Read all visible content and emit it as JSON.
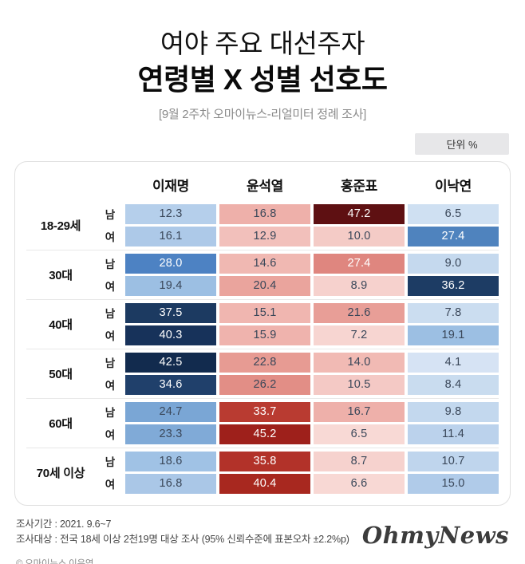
{
  "header": {
    "title_line1": "여야 주요 대선주자",
    "title_line2": "연령별 X 성별 선호도",
    "subtitle": "[9월 2주차 오마이뉴스-리얼미터 정례 조사]",
    "unit_label": "단위 %"
  },
  "table": {
    "text_dark": "#3a4759",
    "candidates": [
      "이재명",
      "윤석열",
      "홍준표",
      "이낙연"
    ],
    "groups": [
      {
        "age": "18-29세",
        "rows": [
          {
            "gender": "남",
            "cells": [
              {
                "v": "12.3",
                "bg": "#b5cfeb",
                "fg": "dark"
              },
              {
                "v": "16.8",
                "bg": "#eeb0aa",
                "fg": "dark"
              },
              {
                "v": "47.2",
                "bg": "#5e1012",
                "fg": "white"
              },
              {
                "v": "6.5",
                "bg": "#cfe0f2",
                "fg": "dark"
              }
            ]
          },
          {
            "gender": "여",
            "cells": [
              {
                "v": "16.1",
                "bg": "#adc9e8",
                "fg": "dark"
              },
              {
                "v": "12.9",
                "bg": "#f2c0bb",
                "fg": "dark"
              },
              {
                "v": "10.0",
                "bg": "#f4cbc6",
                "fg": "dark"
              },
              {
                "v": "27.4",
                "bg": "#4f83be",
                "fg": "white"
              }
            ]
          }
        ]
      },
      {
        "age": "30대",
        "rows": [
          {
            "gender": "남",
            "cells": [
              {
                "v": "28.0",
                "bg": "#4d82c3",
                "fg": "white"
              },
              {
                "v": "14.6",
                "bg": "#f0b8b2",
                "fg": "dark"
              },
              {
                "v": "27.4",
                "bg": "#df867f",
                "fg": "white"
              },
              {
                "v": "9.0",
                "bg": "#c5d9ee",
                "fg": "dark"
              }
            ]
          },
          {
            "gender": "여",
            "cells": [
              {
                "v": "19.4",
                "bg": "#9cbfe3",
                "fg": "dark"
              },
              {
                "v": "20.4",
                "bg": "#eaa49d",
                "fg": "dark"
              },
              {
                "v": "8.9",
                "bg": "#f6d1cd",
                "fg": "dark"
              },
              {
                "v": "36.2",
                "bg": "#1d3c64",
                "fg": "white"
              }
            ]
          }
        ]
      },
      {
        "age": "40대",
        "rows": [
          {
            "gender": "남",
            "cells": [
              {
                "v": "37.5",
                "bg": "#1c3a61",
                "fg": "white"
              },
              {
                "v": "15.1",
                "bg": "#f0b6b0",
                "fg": "dark"
              },
              {
                "v": "21.6",
                "bg": "#e89e97",
                "fg": "dark"
              },
              {
                "v": "7.8",
                "bg": "#cbddf0",
                "fg": "dark"
              }
            ]
          },
          {
            "gender": "여",
            "cells": [
              {
                "v": "40.3",
                "bg": "#17325a",
                "fg": "white"
              },
              {
                "v": "15.9",
                "bg": "#efb3ad",
                "fg": "dark"
              },
              {
                "v": "7.2",
                "bg": "#f7d5d1",
                "fg": "dark"
              },
              {
                "v": "19.1",
                "bg": "#9cbfe3",
                "fg": "dark"
              }
            ]
          }
        ]
      },
      {
        "age": "50대",
        "rows": [
          {
            "gender": "남",
            "cells": [
              {
                "v": "42.5",
                "bg": "#122b4e",
                "fg": "white"
              },
              {
                "v": "22.8",
                "bg": "#e79b93",
                "fg": "dark"
              },
              {
                "v": "14.0",
                "bg": "#f1bab4",
                "fg": "dark"
              },
              {
                "v": "4.1",
                "bg": "#d6e3f4",
                "fg": "dark"
              }
            ]
          },
          {
            "gender": "여",
            "cells": [
              {
                "v": "34.6",
                "bg": "#20406b",
                "fg": "white"
              },
              {
                "v": "26.2",
                "bg": "#e28e86",
                "fg": "dark"
              },
              {
                "v": "10.5",
                "bg": "#f4c9c5",
                "fg": "dark"
              },
              {
                "v": "8.4",
                "bg": "#c9dcef",
                "fg": "dark"
              }
            ]
          }
        ]
      },
      {
        "age": "60대",
        "rows": [
          {
            "gender": "남",
            "cells": [
              {
                "v": "24.7",
                "bg": "#7aa6d5",
                "fg": "dark"
              },
              {
                "v": "33.7",
                "bg": "#b93b31",
                "fg": "white"
              },
              {
                "v": "16.7",
                "bg": "#eeb0aa",
                "fg": "dark"
              },
              {
                "v": "9.8",
                "bg": "#c3d8ee",
                "fg": "dark"
              }
            ]
          },
          {
            "gender": "여",
            "cells": [
              {
                "v": "23.3",
                "bg": "#80aad7",
                "fg": "dark"
              },
              {
                "v": "45.2",
                "bg": "#9e201b",
                "fg": "white"
              },
              {
                "v": "6.5",
                "bg": "#f8d9d5",
                "fg": "dark"
              },
              {
                "v": "11.4",
                "bg": "#bbd2ec",
                "fg": "dark"
              }
            ]
          }
        ]
      },
      {
        "age": "70세 이상",
        "rows": [
          {
            "gender": "남",
            "cells": [
              {
                "v": "18.6",
                "bg": "#a0c2e5",
                "fg": "dark"
              },
              {
                "v": "35.8",
                "bg": "#b23229",
                "fg": "white"
              },
              {
                "v": "8.7",
                "bg": "#f6d2ce",
                "fg": "dark"
              },
              {
                "v": "10.7",
                "bg": "#bfd5ed",
                "fg": "dark"
              }
            ]
          },
          {
            "gender": "여",
            "cells": [
              {
                "v": "16.8",
                "bg": "#aac7e7",
                "fg": "dark"
              },
              {
                "v": "40.4",
                "bg": "#a8281f",
                "fg": "white"
              },
              {
                "v": "6.6",
                "bg": "#f8d8d4",
                "fg": "dark"
              },
              {
                "v": "15.0",
                "bg": "#b0cbe9",
                "fg": "dark"
              }
            ]
          }
        ]
      }
    ]
  },
  "footer": {
    "period": "조사기간 : 2021. 9.6~7",
    "sample": "조사대상 : 전국 18세 이상 2천19명 대상 조사 (95% 신뢰수준에 표본오차 ±2.2%p)",
    "copyright": "© 오마이뉴스 이은영",
    "logo": "OhmyNews"
  },
  "chart_data": {
    "type": "heatmap",
    "title": "여야 주요 대선주자 연령별 X 성별 선호도",
    "subtitle": "[9월 2주차 오마이뉴스-리얼미터 정례 조사]",
    "unit": "%",
    "columns": [
      "이재명",
      "윤석열",
      "홍준표",
      "이낙연"
    ],
    "rows": [
      {
        "age": "18-29세",
        "gender": "남",
        "values": [
          12.3,
          16.8,
          47.2,
          6.5
        ]
      },
      {
        "age": "18-29세",
        "gender": "여",
        "values": [
          16.1,
          12.9,
          10.0,
          27.4
        ]
      },
      {
        "age": "30대",
        "gender": "남",
        "values": [
          28.0,
          14.6,
          27.4,
          9.0
        ]
      },
      {
        "age": "30대",
        "gender": "여",
        "values": [
          19.4,
          20.4,
          8.9,
          36.2
        ]
      },
      {
        "age": "40대",
        "gender": "남",
        "values": [
          37.5,
          15.1,
          21.6,
          7.8
        ]
      },
      {
        "age": "40대",
        "gender": "여",
        "values": [
          40.3,
          15.9,
          7.2,
          19.1
        ]
      },
      {
        "age": "50대",
        "gender": "남",
        "values": [
          42.5,
          22.8,
          14.0,
          4.1
        ]
      },
      {
        "age": "50대",
        "gender": "여",
        "values": [
          34.6,
          26.2,
          10.5,
          8.4
        ]
      },
      {
        "age": "60대",
        "gender": "남",
        "values": [
          24.7,
          33.7,
          16.7,
          9.8
        ]
      },
      {
        "age": "60대",
        "gender": "여",
        "values": [
          23.3,
          45.2,
          6.5,
          11.4
        ]
      },
      {
        "age": "70세 이상",
        "gender": "남",
        "values": [
          18.6,
          35.8,
          8.7,
          10.7
        ]
      },
      {
        "age": "70세 이상",
        "gender": "여",
        "values": [
          16.8,
          40.4,
          6.6,
          15.0
        ]
      }
    ],
    "legend_position": "none",
    "grid": false,
    "color_scales": {
      "이재명": "blue (light=low, dark navy=high)",
      "윤석열": "red (light pink=low, dark red=high)",
      "홍준표": "red (light pink=low, dark maroon=high)",
      "이낙연": "blue (light=low, dark navy=high)"
    }
  }
}
